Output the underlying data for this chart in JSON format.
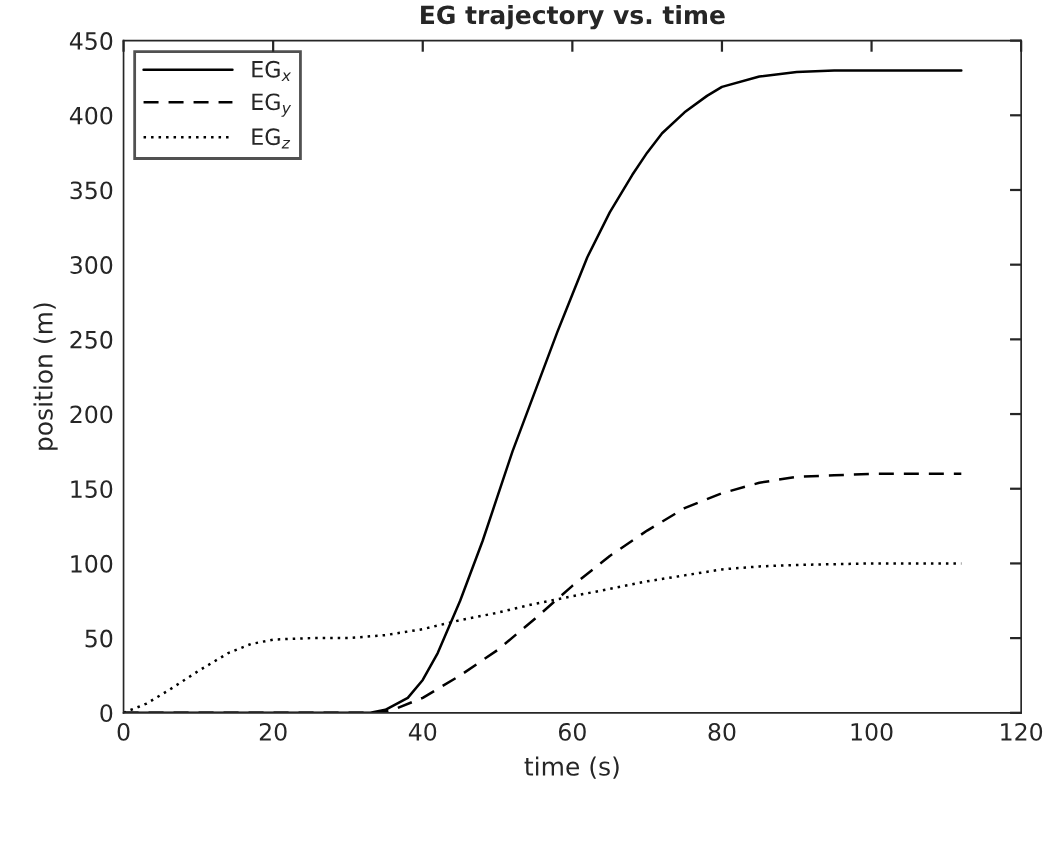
{
  "chart_data": {
    "type": "line",
    "title": "EG trajectory vs. time",
    "xlabel": "time (s)",
    "ylabel": "position (m)",
    "xlim": [
      0,
      120
    ],
    "xticks": [
      0,
      20,
      40,
      60,
      80,
      100,
      120
    ],
    "ylim": [
      0,
      450
    ],
    "yticks": [
      0,
      50,
      100,
      150,
      200,
      250,
      300,
      350,
      400,
      450
    ],
    "grid": false,
    "legend": "top left",
    "marker": "none",
    "series": [
      {
        "name": "EG$_{x}$",
        "color": "#000000",
        "line_style": "solid",
        "x": [
          0,
          33,
          35,
          38,
          40,
          42,
          45,
          48,
          50,
          52,
          55,
          58,
          60,
          62,
          65,
          68,
          70,
          72,
          75,
          78,
          80,
          85,
          90,
          95,
          100,
          112
        ],
        "values": [
          0,
          0,
          2,
          10,
          22,
          40,
          75,
          115,
          145,
          175,
          215,
          255,
          280,
          305,
          335,
          360,
          375,
          388,
          402,
          413,
          419,
          426,
          429,
          430,
          430,
          430
        ]
      },
      {
        "name": "EG$_{y}$",
        "color": "#000000",
        "line_style": "dashed",
        "x": [
          0,
          34,
          36,
          40,
          45,
          50,
          55,
          60,
          65,
          70,
          75,
          80,
          85,
          90,
          95,
          100,
          112
        ],
        "values": [
          0,
          0,
          2,
          10,
          25,
          42,
          63,
          85,
          105,
          122,
          137,
          147,
          154,
          158,
          159,
          160,
          160
        ]
      },
      {
        "name": "EG$_{z}$",
        "color": "#000000",
        "line_style": "dotted",
        "x": [
          0,
          3,
          6,
          10,
          14,
          17,
          20,
          25,
          30,
          35,
          40,
          45,
          50,
          55,
          60,
          65,
          70,
          75,
          80,
          85,
          90,
          100,
          112
        ],
        "values": [
          0,
          6,
          15,
          28,
          40,
          46,
          49,
          50,
          50,
          52,
          56,
          62,
          67,
          73,
          78,
          83,
          88,
          92,
          96,
          98,
          99,
          100,
          100
        ]
      }
    ]
  }
}
